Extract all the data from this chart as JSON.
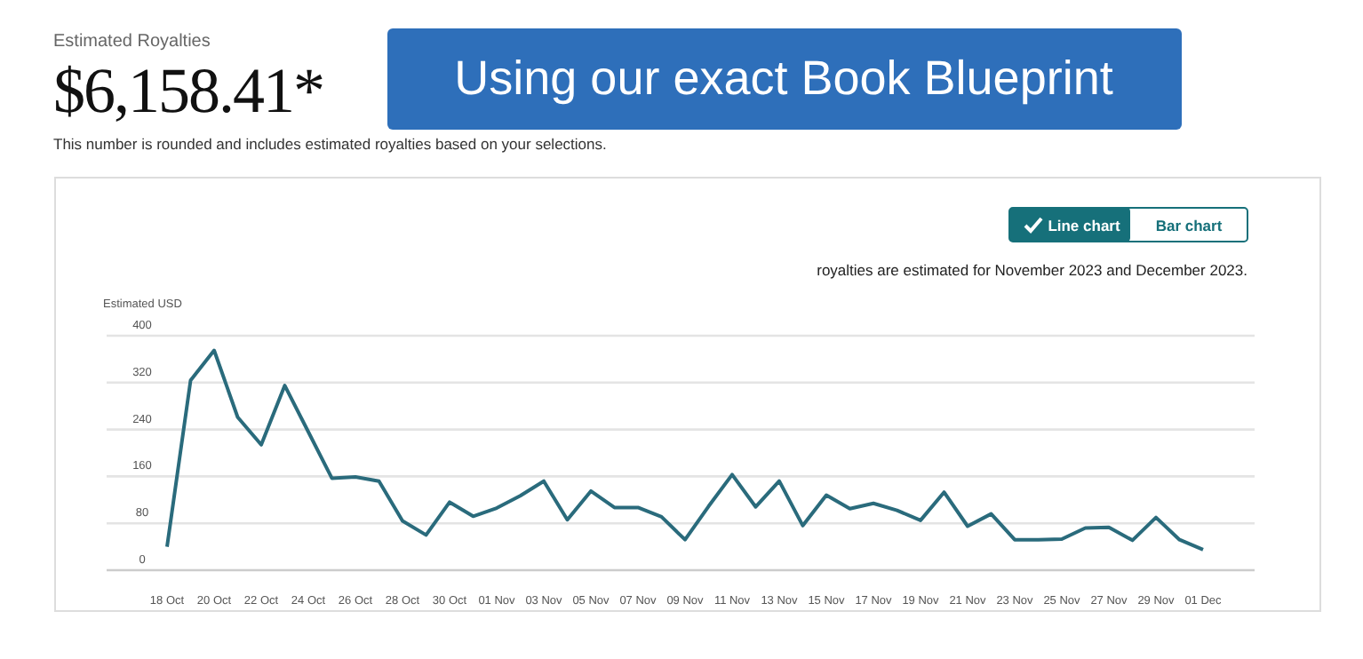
{
  "chart_data": {
    "type": "line",
    "title": "$6,158.41*",
    "ylabel": "Estimated USD",
    "annotations": [
      "Estimated Royalties",
      "This number is rounded and includes estimated royalties based on your selections.",
      "Using our exact Book Blueprint",
      "Line chart",
      "Bar chart",
      "royalties are estimated for November 2023 and December 2023."
    ],
    "categories": [
      "18 Oct",
      null,
      "20 Oct",
      null,
      "22 Oct",
      null,
      "24 Oct",
      null,
      "26 Oct",
      null,
      "28 Oct",
      null,
      "30 Oct",
      null,
      "01 Nov",
      null,
      "03 Nov",
      null,
      "05 Nov",
      null,
      "07 Nov",
      null,
      "09 Nov",
      null,
      "11 Nov",
      null,
      "13 Nov",
      null,
      "15 Nov",
      null,
      "17 Nov",
      null,
      "19 Nov",
      null,
      "21 Nov",
      null,
      "23 Nov",
      null,
      "25 Nov",
      null,
      "27 Nov",
      null,
      "29 Nov",
      null,
      "01 Dec"
    ],
    "series": [
      {
        "color": "#2a6b7c",
        "values": [
          40,
          324,
          375,
          261,
          214,
          315,
          236,
          157,
          159,
          152,
          84,
          60,
          116,
          92,
          106,
          127,
          152,
          86,
          135,
          107,
          107,
          91,
          52,
          109,
          163,
          108,
          152,
          76,
          128,
          105,
          114,
          102,
          85,
          133,
          75,
          96,
          52,
          52,
          53,
          72,
          73,
          51,
          90,
          52,
          35
        ]
      }
    ],
    "ylim": [
      0,
      400
    ],
    "yticks": [
      0,
      80,
      160,
      240,
      320,
      400
    ],
    "grid": "y",
    "marker": "none",
    "line_style": "solid"
  }
}
